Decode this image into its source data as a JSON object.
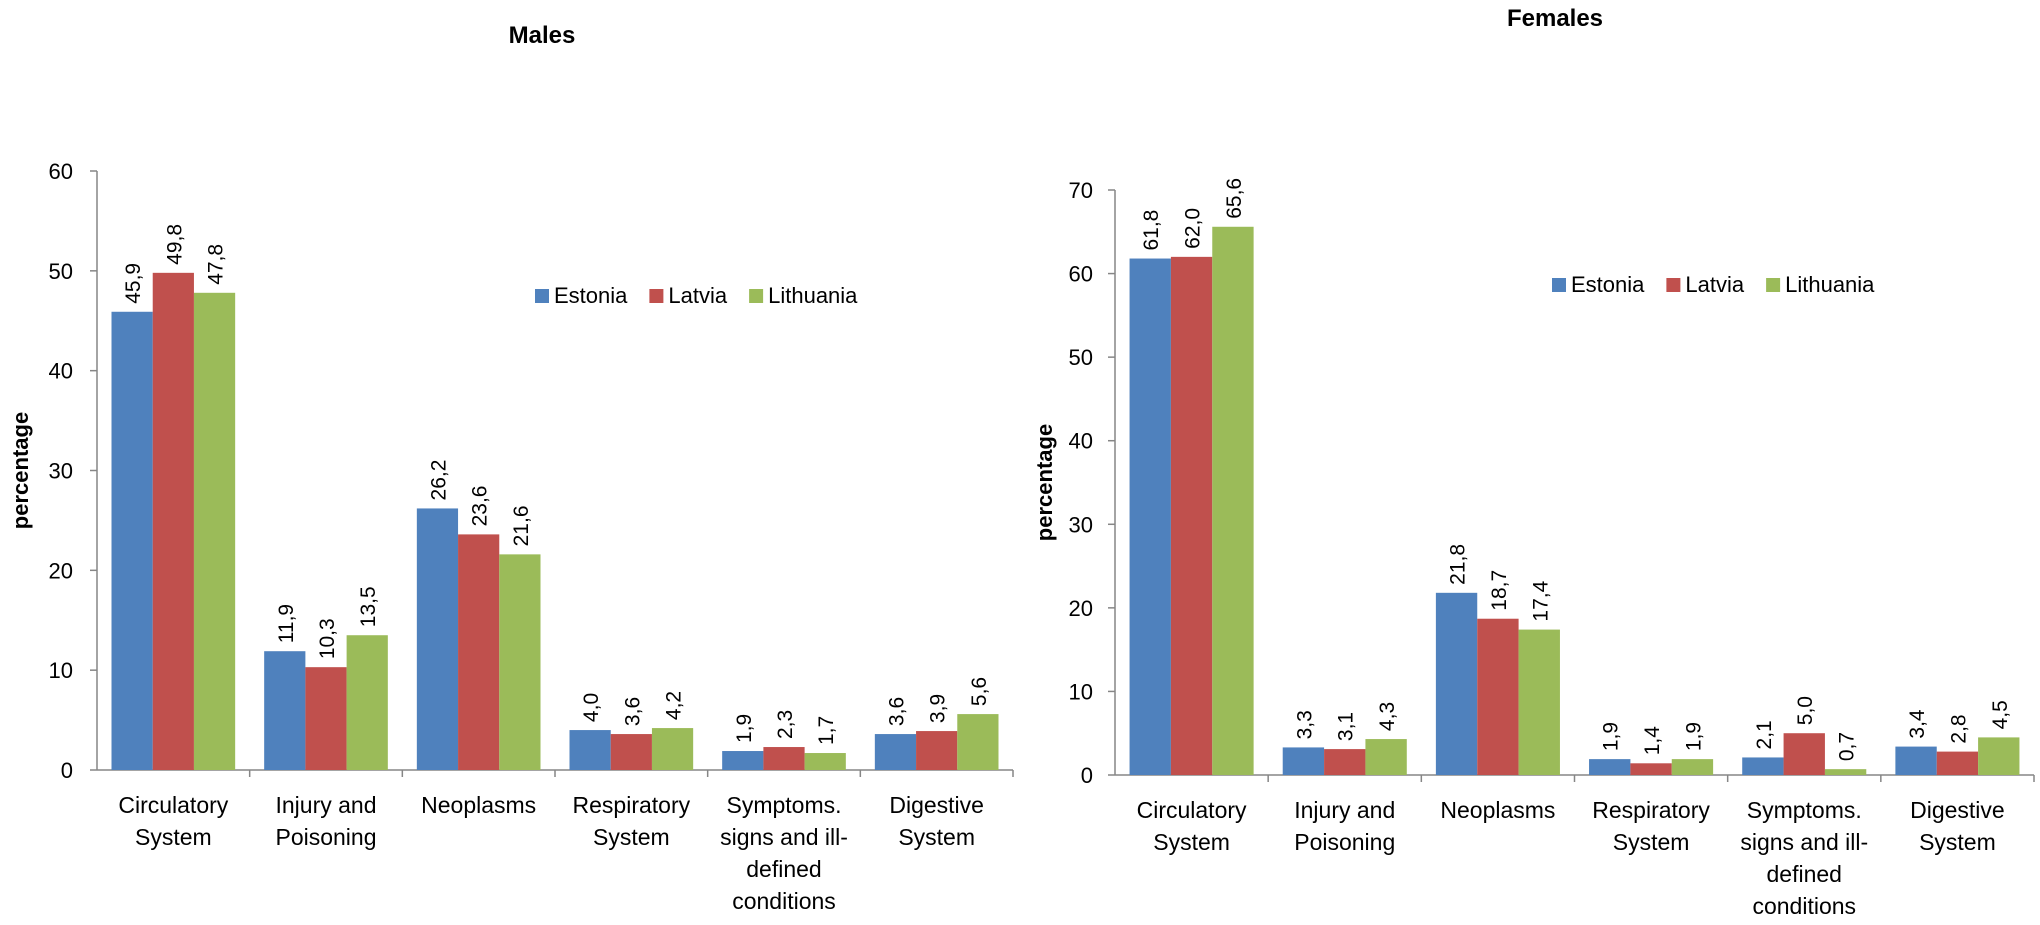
{
  "chart_data": [
    {
      "type": "bar",
      "title": "Males",
      "ylabel": "percentage",
      "ylim": [
        0,
        60
      ],
      "yticks": [
        0,
        10,
        20,
        30,
        40,
        50,
        60
      ],
      "grid": false,
      "legend_position": "top-right",
      "categories": [
        [
          "Circulatory",
          "System"
        ],
        [
          "Injury and",
          "Poisoning"
        ],
        [
          "Neoplasms"
        ],
        [
          "Respiratory",
          "System"
        ],
        [
          "Symptoms.",
          "signs and ill-",
          "defined",
          "conditions"
        ],
        [
          "Digestive",
          "System"
        ]
      ],
      "series": [
        {
          "name": "Estonia",
          "color": "#4F81BD",
          "values": [
            45.9,
            11.9,
            26.2,
            4.0,
            1.9,
            3.6
          ],
          "labels": [
            "45,9",
            "11,9",
            "26,2",
            "4,0",
            "1,9",
            "3,6"
          ]
        },
        {
          "name": "Latvia",
          "color": "#C0504D",
          "values": [
            49.8,
            10.3,
            23.6,
            3.6,
            2.3,
            3.9
          ],
          "labels": [
            "49,8",
            "10,3",
            "23,6",
            "3,6",
            "2,3",
            "3,9"
          ]
        },
        {
          "name": "Lithuania",
          "color": "#9BBB59",
          "values": [
            47.8,
            13.5,
            21.6,
            4.2,
            1.7,
            5.6
          ],
          "labels": [
            "47,8",
            "13,5",
            "21,6",
            "4,2",
            "1,7",
            "5,6"
          ]
        }
      ]
    },
    {
      "type": "bar",
      "title": "Females",
      "ylabel": "percentage",
      "ylim": [
        0,
        70
      ],
      "yticks": [
        0,
        10,
        20,
        30,
        40,
        50,
        60,
        70
      ],
      "grid": false,
      "legend_position": "top-right",
      "categories": [
        [
          "Circulatory",
          "System"
        ],
        [
          "Injury and",
          "Poisoning"
        ],
        [
          "Neoplasms"
        ],
        [
          "Respiratory",
          "System"
        ],
        [
          "Symptoms.",
          "signs and ill-",
          "defined",
          "conditions"
        ],
        [
          "Digestive",
          "System"
        ]
      ],
      "series": [
        {
          "name": "Estonia",
          "color": "#4F81BD",
          "values": [
            61.8,
            3.3,
            21.8,
            1.9,
            2.1,
            3.4
          ],
          "labels": [
            "61,8",
            "3,3",
            "21,8",
            "1,9",
            "2,1",
            "3,4"
          ]
        },
        {
          "name": "Latvia",
          "color": "#C0504D",
          "values": [
            62.0,
            3.1,
            18.7,
            1.4,
            5.0,
            2.8
          ],
          "labels": [
            "62,0",
            "3,1",
            "18,7",
            "1,4",
            "5,0",
            "2,8"
          ]
        },
        {
          "name": "Lithuania",
          "color": "#9BBB59",
          "values": [
            65.6,
            4.3,
            17.4,
            1.9,
            0.7,
            4.5
          ],
          "labels": [
            "65,6",
            "4,3",
            "17,4",
            "1,9",
            "0,7",
            "4,5"
          ]
        }
      ]
    }
  ]
}
